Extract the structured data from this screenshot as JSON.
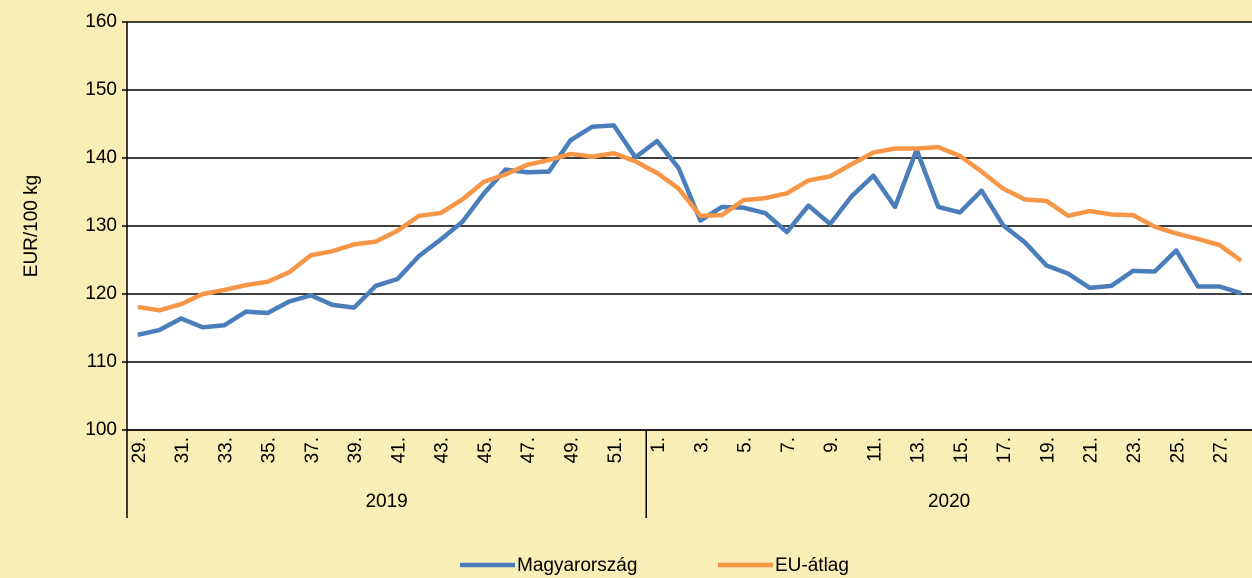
{
  "chart_data": {
    "type": "line",
    "y_label": "EUR/100 kg",
    "category_groups": [
      {
        "name": "2019",
        "categories": [
          "29.",
          null,
          "31.",
          null,
          "33.",
          null,
          "35.",
          null,
          "37.",
          null,
          "39.",
          null,
          "41.",
          null,
          "43.",
          null,
          "45.",
          null,
          "47.",
          null,
          "49.",
          null,
          "51.",
          null
        ]
      },
      {
        "name": "2020",
        "categories": [
          "1.",
          null,
          "3.",
          null,
          "5.",
          null,
          "7.",
          null,
          "9.",
          null,
          "11.",
          null,
          "13.",
          null,
          "15.",
          null,
          "17.",
          null,
          "19.",
          null,
          "21.",
          null,
          "23.",
          null,
          "25.",
          null,
          "27.",
          null
        ]
      }
    ],
    "series": [
      {
        "name": "Magyarország",
        "color": "#4a7ebb",
        "values": [
          114,
          114.7,
          116.4,
          115.1,
          115.4,
          117.4,
          117.2,
          118.9,
          119.8,
          118.4,
          118,
          121.2,
          122.2,
          125.6,
          128,
          130.6,
          134.8,
          138.3,
          137.9,
          138,
          142.6,
          144.6,
          144.8,
          140.1,
          142.5,
          138.5,
          130.8,
          132.8,
          132.7,
          131.9,
          129.1,
          133,
          130.3,
          134.4,
          137.4,
          132.8,
          141.2,
          132.8,
          132,
          135.2,
          130.1,
          127.6,
          124.2,
          123,
          120.9,
          121.2,
          123.4,
          123.3,
          126.4,
          121.1,
          121.1,
          120.1
        ]
      },
      {
        "name": "EU-átlag",
        "color": "#f79646",
        "values": [
          118.1,
          117.6,
          118.5,
          120,
          120.6,
          121.3,
          121.8,
          123.2,
          125.7,
          126.3,
          127.3,
          127.7,
          129.3,
          131.5,
          131.9,
          133.9,
          136.5,
          137.6,
          139,
          139.7,
          140.6,
          140.2,
          140.7,
          139.5,
          137.8,
          135.5,
          131.5,
          131.6,
          133.8,
          134.1,
          134.8,
          136.7,
          137.3,
          139.1,
          140.8,
          141.4,
          141.4,
          141.6,
          140.3,
          138,
          135.5,
          133.9,
          133.7,
          131.5,
          132.2,
          131.7,
          131.6,
          129.9,
          128.9,
          128.1,
          127.2,
          124.9
        ]
      }
    ],
    "ylim": [
      100,
      160
    ],
    "yticks": [
      100,
      110,
      120,
      130,
      140,
      150,
      160
    ],
    "grid": true,
    "legend": "bottom"
  }
}
